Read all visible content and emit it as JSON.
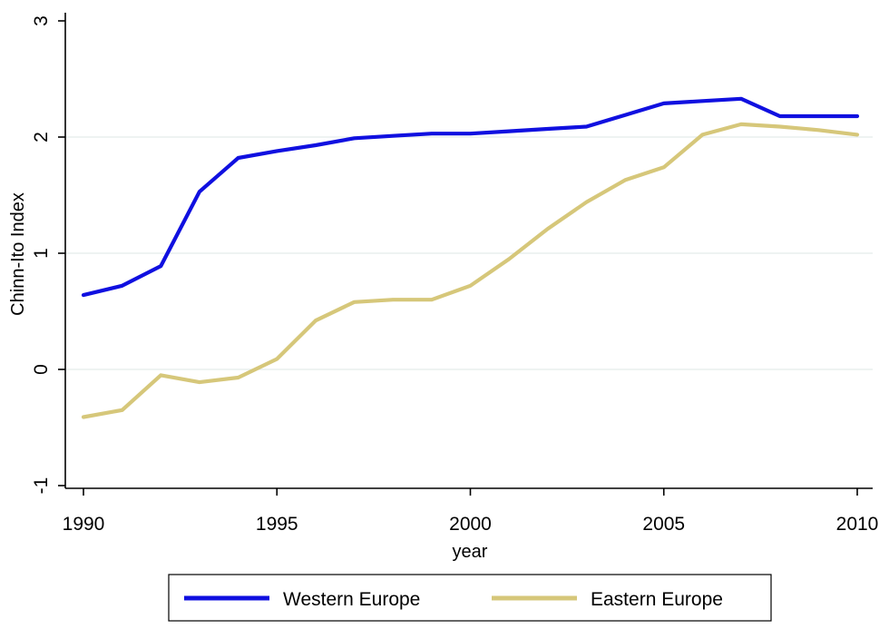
{
  "chart_data": {
    "type": "line",
    "title": "",
    "xlabel": "year",
    "ylabel": "Chinn-Ito Index",
    "xlim": [
      1990,
      2010
    ],
    "ylim": [
      -1,
      3
    ],
    "x_ticks": [
      1990,
      1995,
      2000,
      2005,
      2010
    ],
    "y_ticks": [
      -1,
      0,
      1,
      2,
      3
    ],
    "grid": true,
    "legend_position": "bottom",
    "x": [
      1990,
      1991,
      1992,
      1993,
      1994,
      1995,
      1996,
      1997,
      1998,
      1999,
      2000,
      2001,
      2002,
      2003,
      2004,
      2005,
      2006,
      2007,
      2008,
      2009,
      2010
    ],
    "series": [
      {
        "name": "Western Europe",
        "color": "#1010e0",
        "values": [
          0.64,
          0.72,
          0.89,
          1.53,
          1.82,
          1.88,
          1.93,
          1.99,
          2.01,
          2.03,
          2.03,
          2.05,
          2.07,
          2.09,
          2.19,
          2.29,
          2.31,
          2.33,
          2.18,
          2.18,
          2.18
        ]
      },
      {
        "name": "Eastern Europe",
        "color": "#d6c77a",
        "values": [
          -0.41,
          -0.35,
          -0.05,
          -0.11,
          -0.07,
          0.09,
          0.42,
          0.58,
          0.6,
          0.6,
          0.72,
          0.95,
          1.21,
          1.44,
          1.63,
          1.74,
          2.02,
          2.11,
          2.09,
          2.06,
          2.02
        ]
      }
    ]
  }
}
